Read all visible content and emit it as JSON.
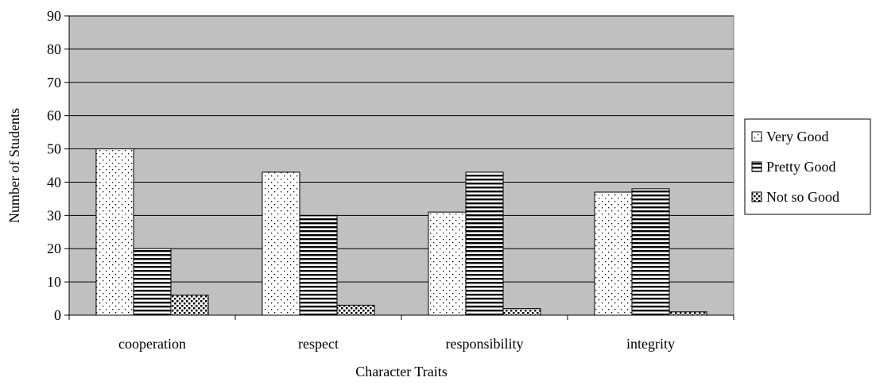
{
  "chart_data": {
    "type": "bar",
    "title": "",
    "xlabel": "Character Traits",
    "ylabel": "Number of Students",
    "categories": [
      "cooperation",
      "respect",
      "responsibility",
      "integrity"
    ],
    "ylim": [
      0,
      90
    ],
    "yticks": [
      0,
      10,
      20,
      30,
      40,
      50,
      60,
      70,
      80,
      90
    ],
    "grid": true,
    "legend_position": "right",
    "plot_background": "#c0c0c0",
    "series": [
      {
        "name": "Very Good",
        "pattern": "dots",
        "values": [
          50,
          43,
          31,
          37
        ]
      },
      {
        "name": "Pretty Good",
        "pattern": "horizontal-lines",
        "values": [
          20,
          30,
          43,
          38
        ]
      },
      {
        "name": "Not so Good",
        "pattern": "checker",
        "values": [
          6,
          3,
          2,
          1
        ]
      }
    ]
  }
}
